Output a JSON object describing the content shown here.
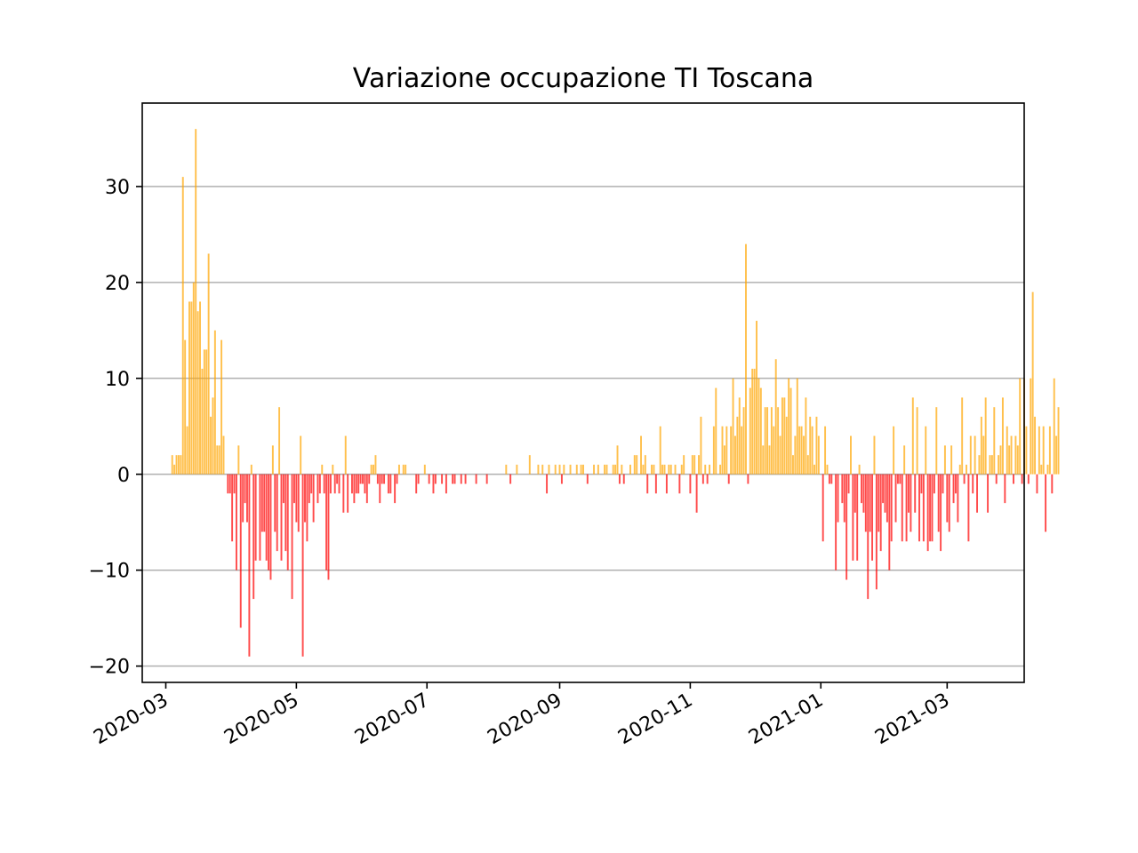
{
  "chart_data": {
    "type": "bar",
    "title": "Variazione occupazione TI Toscana",
    "xlabel": "",
    "ylabel": "",
    "x_range": [
      "2020-02-19",
      "2021-04-06"
    ],
    "ylim": [
      -21.7,
      38.7
    ],
    "x_ticks": [
      {
        "date": "2020-03-01",
        "label": "2020-03"
      },
      {
        "date": "2020-05-01",
        "label": "2020-05"
      },
      {
        "date": "2020-07-01",
        "label": "2020-07"
      },
      {
        "date": "2020-09-01",
        "label": "2020-09"
      },
      {
        "date": "2020-11-01",
        "label": "2020-11"
      },
      {
        "date": "2021-01-01",
        "label": "2021-01"
      },
      {
        "date": "2021-03-01",
        "label": "2021-03"
      }
    ],
    "y_ticks": [
      {
        "value": 30,
        "label": "30"
      },
      {
        "value": 20,
        "label": "20"
      },
      {
        "value": 10,
        "label": "10"
      },
      {
        "value": 0,
        "label": "0"
      },
      {
        "value": -10,
        "label": "−10"
      },
      {
        "value": -20,
        "label": "−20"
      }
    ],
    "grid": "y",
    "colors": {
      "positive": "#ffa500",
      "negative": "#ff0000",
      "bar_opacity": 0.7
    },
    "start_date": "2020-03-04",
    "values": [
      2,
      1,
      2,
      2,
      2,
      31,
      14,
      5,
      18,
      18,
      20,
      36,
      17,
      18,
      11,
      13,
      13,
      23,
      6,
      8,
      15,
      3,
      3,
      14,
      4,
      0,
      -2,
      -2,
      -7,
      -2,
      -10,
      3,
      -16,
      -5,
      -3,
      -5,
      -19,
      1,
      -13,
      -9,
      0,
      -9,
      -6,
      -6,
      -9,
      -10,
      -11,
      3,
      -6,
      -8,
      7,
      -9,
      -3,
      -8,
      -10,
      0,
      -13,
      -3,
      -5,
      -6,
      4,
      -19,
      -5,
      -7,
      -3,
      -2,
      -5,
      0,
      -3,
      -2,
      1,
      -2,
      -10,
      -11,
      -2,
      1,
      -2,
      -1,
      -2,
      0,
      -4,
      4,
      -4,
      0,
      -2,
      -3,
      -2,
      -2,
      -1,
      -1,
      -2,
      -3,
      -1,
      1,
      1,
      2,
      -1,
      -3,
      -1,
      -1,
      0,
      -2,
      -2,
      0,
      -3,
      -1,
      1,
      0,
      1,
      1,
      0,
      0,
      0,
      0,
      -2,
      -1,
      0,
      0,
      1,
      0,
      -1,
      0,
      -2,
      -1,
      0,
      0,
      -1,
      0,
      -2,
      0,
      0,
      -1,
      -1,
      0,
      0,
      -1,
      0,
      -1,
      0,
      0,
      0,
      0,
      -1,
      0,
      0,
      0,
      0,
      -1,
      0,
      0,
      0,
      0,
      0,
      0,
      0,
      0,
      1,
      0,
      -1,
      0,
      0,
      1,
      0,
      0,
      0,
      0,
      0,
      2,
      0,
      0,
      0,
      1,
      0,
      1,
      0,
      -2,
      1,
      0,
      0,
      1,
      0,
      1,
      -1,
      1,
      0,
      0,
      1,
      0,
      0,
      1,
      0,
      1,
      1,
      0,
      -1,
      0,
      0,
      1,
      0,
      1,
      0,
      0,
      1,
      1,
      0,
      0,
      1,
      1,
      3,
      -1,
      1,
      -1,
      0,
      0,
      1,
      0,
      2,
      2,
      0,
      4,
      1,
      2,
      -2,
      0,
      1,
      1,
      -2,
      0,
      5,
      1,
      1,
      -2,
      1,
      1,
      0,
      1,
      0,
      -2,
      1,
      2,
      0,
      0,
      -2,
      2,
      2,
      -4,
      2,
      6,
      -1,
      1,
      -1,
      1,
      0,
      5,
      9,
      0,
      1,
      5,
      3,
      5,
      -1,
      5,
      10,
      4,
      6,
      8,
      5,
      7,
      24,
      -1,
      9,
      11,
      11,
      16,
      10,
      9,
      3,
      7,
      7,
      3,
      7,
      5,
      12,
      7,
      4,
      8,
      8,
      6,
      10,
      9,
      2,
      4,
      10,
      5,
      5,
      4,
      8,
      2,
      6,
      5,
      1,
      6,
      4,
      0,
      -7,
      5,
      1,
      -1,
      -1,
      0,
      -10,
      -5,
      0,
      -3,
      -5,
      -11,
      -2,
      4,
      -9,
      -4,
      -9,
      1,
      -3,
      -4,
      -6,
      -13,
      -6,
      -9,
      4,
      -12,
      -6,
      -8,
      -3,
      -4,
      -5,
      -10,
      -7,
      5,
      -5,
      -1,
      -1,
      -7,
      3,
      -7,
      -4,
      -6,
      8,
      -4,
      7,
      -7,
      -2,
      -7,
      5,
      -8,
      -7,
      -7,
      -2,
      7,
      -6,
      -8,
      -2,
      3,
      -5,
      -6,
      3,
      -3,
      -2,
      -5,
      1,
      8,
      -1,
      1,
      -7,
      4,
      -2,
      4,
      -4,
      2,
      6,
      4,
      8,
      -4,
      2,
      2,
      7,
      -1,
      2,
      3,
      8,
      -3,
      5,
      3,
      4,
      -1,
      4,
      3,
      10,
      -1,
      10,
      5,
      -1,
      10,
      19,
      6,
      -2,
      5,
      1,
      5,
      -6,
      1,
      5,
      -2,
      10,
      4,
      7
    ],
    "series": [
      {
        "values_ref": "values"
      }
    ]
  }
}
